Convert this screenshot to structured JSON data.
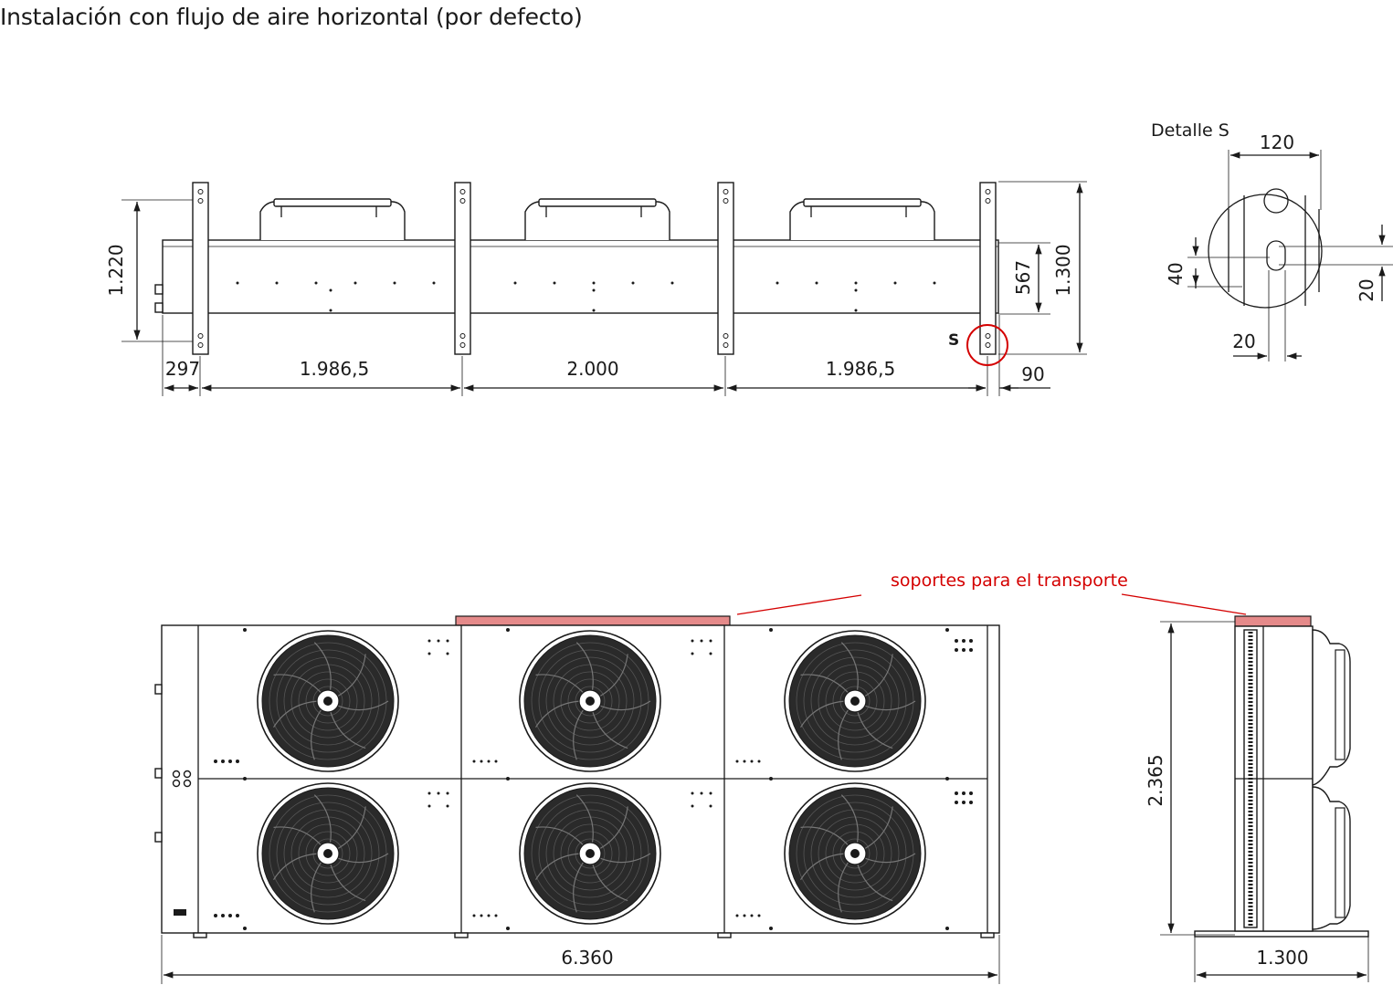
{
  "title": "Instalación con flujo de aire horizontal (por defecto)",
  "top_view": {
    "height_left": "1.220",
    "offset_left": "297",
    "spacing_1": "1.986,5",
    "spacing_2": "2.000",
    "spacing_3": "1.986,5",
    "offset_right": "90",
    "height_inner": "567",
    "height_total": "1.300",
    "detail_marker": "S"
  },
  "detail": {
    "title": "Detalle S",
    "width": "120",
    "slot_height": "40",
    "slot_offset": "20",
    "slot_width": "20"
  },
  "front_view": {
    "callout": "soportes para el transporte",
    "length": "6.360",
    "fan_count": 6
  },
  "side_view": {
    "height": "2.365",
    "depth": "1.300"
  },
  "colors": {
    "line": "#1a1a1a",
    "accent_red": "#d40000",
    "support_fill": "#e58a8a",
    "fan_dark": "#2a2a2a"
  }
}
